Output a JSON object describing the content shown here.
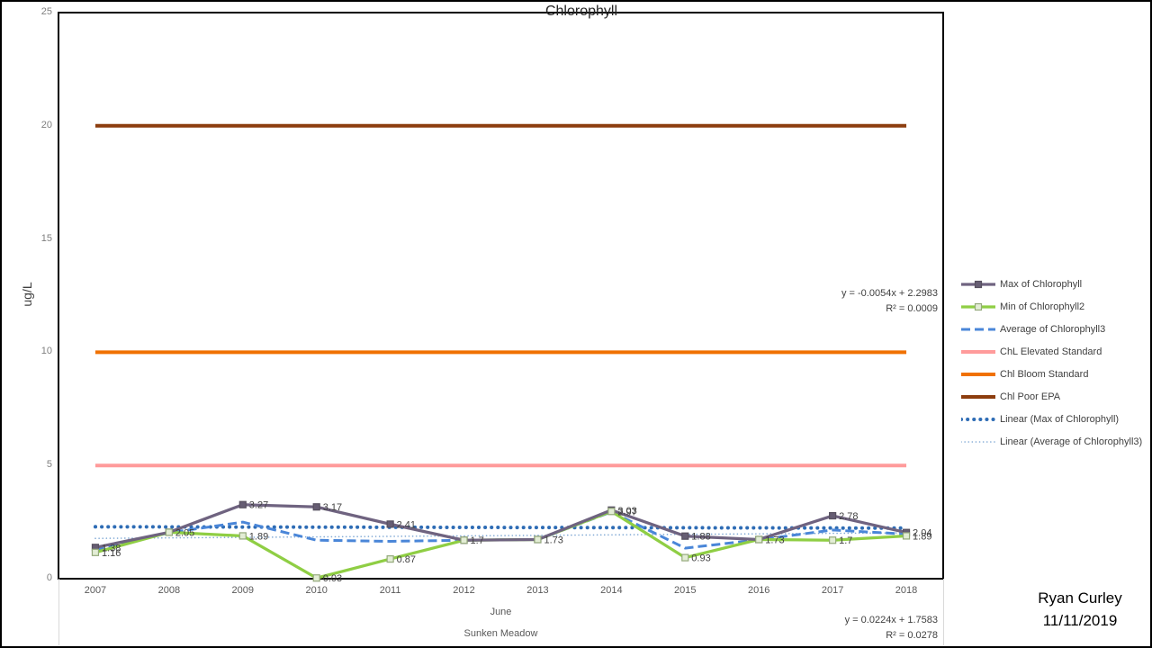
{
  "title": "Chlorophyll",
  "annotations": {
    "author": "Ryan Curley",
    "date": "11/11/2019"
  },
  "axis": {
    "y_title": "ug/L",
    "x_caption_1": "June",
    "x_caption_2": "Sunken Meadow"
  },
  "colors": {
    "max_series": "#6F6380",
    "min_series": "#8FCE44",
    "average_series": "#4A86D8",
    "elevated_standard": "#FF9B9B",
    "bloom_standard": "#F07100",
    "poor_epa": "#8C3D0E",
    "linear_max": "#2E6CB5",
    "linear_average": "#7FA8D4",
    "axis_text": "#595959",
    "label_text": "#404040"
  },
  "chart_data": {
    "type": "line",
    "title": "Chlorophyll",
    "ylabel": "ug/L",
    "xlabel": "June",
    "xlabel2": "Sunken Meadow",
    "ylim": [
      0,
      25
    ],
    "yticks": [
      0,
      5,
      10,
      15,
      20,
      25
    ],
    "legend_position": "right",
    "grid": false,
    "categories": [
      "2007",
      "2008",
      "2009",
      "2010",
      "2011",
      "2012",
      "2013",
      "2014",
      "2015",
      "2016",
      "2017",
      "2018"
    ],
    "series": [
      {
        "name": "Max of Chlorophyll",
        "style": "line-marker",
        "color": "#6F6380",
        "marker_fill": "#665D73",
        "marker_stroke": "#57505F",
        "values": [
          1.38,
          2.05,
          3.27,
          3.17,
          2.41,
          1.7,
          1.73,
          3.03,
          1.88,
          1.73,
          2.78,
          2.04
        ],
        "labels": [
          "1.38",
          "2.05",
          "3.27",
          "3.17",
          "2.41",
          "",
          "",
          "3.03",
          "1.88",
          "",
          "2.78",
          "2.04"
        ]
      },
      {
        "name": "Min of Chlorophyll2",
        "style": "line-marker",
        "color": "#8FCE44",
        "marker_fill": "#E3EDD5",
        "marker_stroke": "#94A97B",
        "values": [
          1.16,
          2.05,
          1.89,
          0.03,
          0.87,
          1.7,
          1.73,
          2.97,
          0.93,
          1.73,
          1.7,
          1.89
        ],
        "labels": [
          "1.16",
          "",
          "1.89",
          "0.03",
          "0.87",
          "1.7",
          "1.73",
          "2.97",
          "0.93",
          "1.73",
          "1.7",
          "1.89"
        ]
      },
      {
        "name": "Average of Chlorophyll3",
        "style": "dashed",
        "color": "#4A86D8",
        "values": [
          1.27,
          2.03,
          2.5,
          1.7,
          1.65,
          1.7,
          1.73,
          2.95,
          1.35,
          1.72,
          2.15,
          1.97
        ]
      },
      {
        "name": "ChL Elevated Standard",
        "style": "solid",
        "color": "#FF9B9B",
        "constant": 5
      },
      {
        "name": "Chl Bloom Standard",
        "style": "solid",
        "color": "#F07100",
        "constant": 10
      },
      {
        "name": "Chl Poor EPA",
        "style": "solid",
        "color": "#8C3D0E",
        "constant": 20
      },
      {
        "name": "Linear (Max of Chlorophyll)",
        "style": "dotted-bold",
        "color": "#2E6CB5",
        "trend": {
          "slope": -0.0054,
          "intercept": 2.2983
        }
      },
      {
        "name": "Linear (Average of Chlorophyll3)",
        "style": "dotted-fine",
        "color": "#7FA8D4",
        "trend": {
          "slope": 0.0224,
          "intercept": 1.7583
        }
      }
    ],
    "equations": [
      {
        "line1": "y = -0.0054x + 2.2983",
        "line2": "R² = 0.0009"
      },
      {
        "line1": "y = 0.0224x + 1.7583",
        "line2": "R² = 0.0278"
      }
    ]
  }
}
